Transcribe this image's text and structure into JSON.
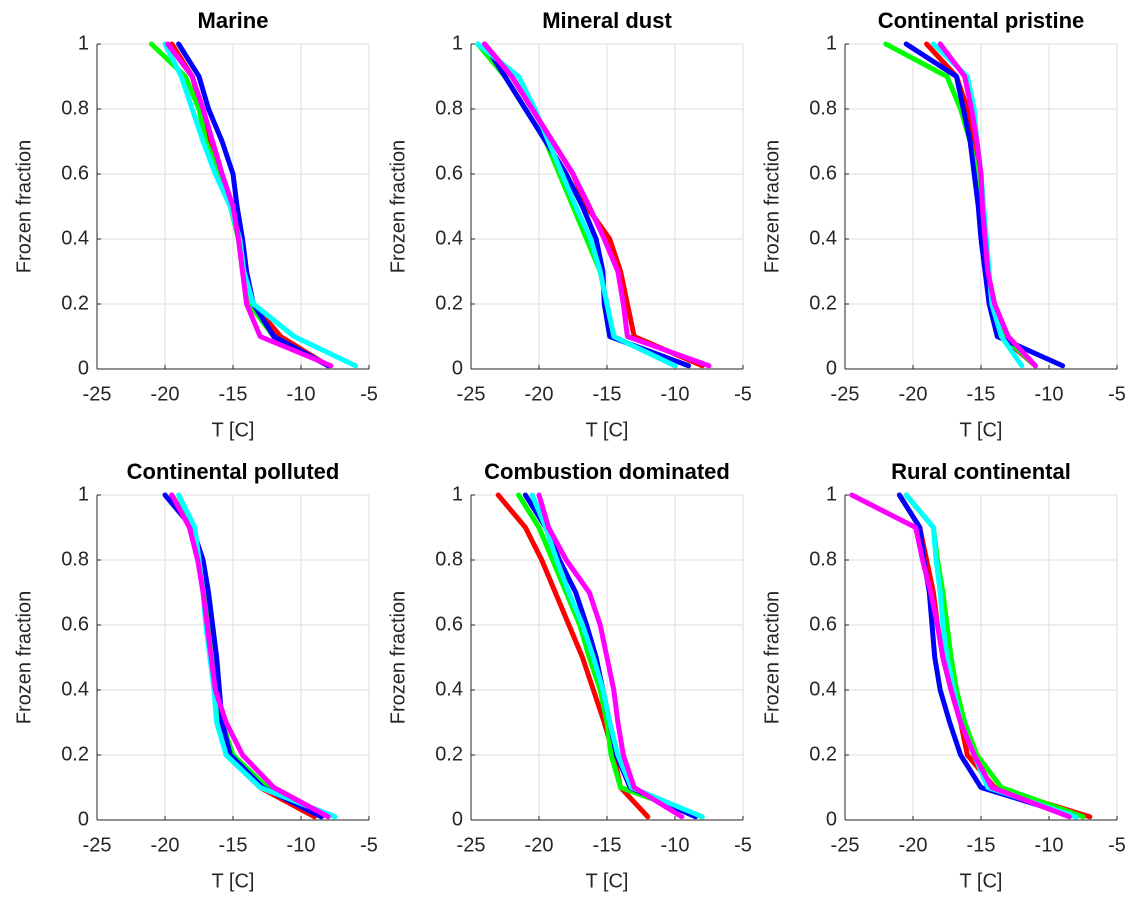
{
  "chart_data": [
    {
      "type": "line",
      "title": "Marine",
      "xlabel": "T [C]",
      "ylabel": "Frozen fraction",
      "xlim": [
        -25,
        -5
      ],
      "xticks": [
        -25,
        -20,
        -15,
        -10,
        -5
      ],
      "ylim": [
        0,
        1
      ],
      "yticks": [
        0,
        0.2,
        0.4,
        0.6,
        0.8,
        1
      ],
      "grid": true,
      "series": [
        {
          "color": "#ff0000",
          "x": [
            -19.5,
            -18,
            -17.3,
            -16.8,
            -16,
            -15,
            -14.5,
            -14.2,
            -13.5,
            -11.5,
            -8
          ],
          "values": [
            1,
            0.9,
            0.8,
            0.7,
            0.6,
            0.5,
            0.4,
            0.3,
            0.2,
            0.1,
            0.01
          ]
        },
        {
          "color": "#00ff00",
          "x": [
            -21,
            -18.5,
            -17.5,
            -17,
            -16,
            -15.2,
            -14.6,
            -14.3,
            -13.8,
            -12,
            -8
          ],
          "values": [
            1,
            0.9,
            0.8,
            0.7,
            0.6,
            0.5,
            0.4,
            0.3,
            0.2,
            0.1,
            0.01
          ]
        },
        {
          "color": "#0000ff",
          "x": [
            -19,
            -17.5,
            -16.8,
            -15.8,
            -15,
            -14.7,
            -14.3,
            -14,
            -13.5,
            -12,
            -8
          ],
          "values": [
            1,
            0.9,
            0.8,
            0.7,
            0.6,
            0.5,
            0.4,
            0.3,
            0.2,
            0.1,
            0.01
          ]
        },
        {
          "color": "#00ffff",
          "x": [
            -20,
            -18.8,
            -18,
            -17.2,
            -16.3,
            -15.2,
            -14.5,
            -14.2,
            -13.5,
            -10.5,
            -6
          ],
          "values": [
            1,
            0.9,
            0.8,
            0.7,
            0.6,
            0.5,
            0.4,
            0.3,
            0.2,
            0.1,
            0.01
          ]
        },
        {
          "color": "#ff00ff",
          "x": [
            -19.8,
            -18,
            -17.2,
            -16.5,
            -15.8,
            -15,
            -14.6,
            -14.3,
            -14,
            -13,
            -7.8
          ],
          "values": [
            1,
            0.9,
            0.8,
            0.7,
            0.6,
            0.5,
            0.4,
            0.3,
            0.2,
            0.1,
            0.01
          ]
        }
      ]
    },
    {
      "type": "line",
      "title": "Mineral dust",
      "xlabel": "T [C]",
      "ylabel": "Frozen fraction",
      "xlim": [
        -25,
        -5
      ],
      "xticks": [
        -25,
        -20,
        -15,
        -10,
        -5
      ],
      "ylim": [
        0,
        1
      ],
      "yticks": [
        0,
        0.2,
        0.4,
        0.6,
        0.8,
        1
      ],
      "grid": true,
      "series": [
        {
          "color": "#ff0000",
          "x": [
            -24,
            -22,
            -20.5,
            -19,
            -17.5,
            -16.5,
            -14.8,
            -14,
            -13.5,
            -13,
            -8
          ],
          "values": [
            1,
            0.9,
            0.8,
            0.7,
            0.6,
            0.5,
            0.4,
            0.3,
            0.2,
            0.1,
            0.01
          ]
        },
        {
          "color": "#00ff00",
          "x": [
            -24.5,
            -22.5,
            -21,
            -19.5,
            -18.5,
            -17.5,
            -16.5,
            -15.5,
            -15,
            -14.5,
            -10
          ],
          "values": [
            1,
            0.9,
            0.8,
            0.7,
            0.6,
            0.5,
            0.4,
            0.3,
            0.2,
            0.1,
            0.01
          ]
        },
        {
          "color": "#0000ff",
          "x": [
            -24,
            -22.5,
            -21,
            -19.5,
            -18,
            -16.8,
            -15.8,
            -15.3,
            -15.2,
            -14.8,
            -9
          ],
          "values": [
            1,
            0.9,
            0.8,
            0.7,
            0.6,
            0.5,
            0.4,
            0.3,
            0.2,
            0.1,
            0.01
          ]
        },
        {
          "color": "#00ffff",
          "x": [
            -24.5,
            -21.5,
            -20.3,
            -19.3,
            -18.3,
            -17.3,
            -16.2,
            -15.5,
            -15,
            -14.5,
            -10
          ],
          "values": [
            1,
            0.9,
            0.8,
            0.7,
            0.6,
            0.5,
            0.4,
            0.3,
            0.2,
            0.1,
            0.01
          ]
        },
        {
          "color": "#ff00ff",
          "x": [
            -24,
            -22,
            -20.5,
            -19,
            -17.5,
            -16.3,
            -15.2,
            -14.2,
            -13.8,
            -13.5,
            -7.5
          ],
          "values": [
            1,
            0.9,
            0.8,
            0.7,
            0.6,
            0.5,
            0.4,
            0.3,
            0.2,
            0.1,
            0.01
          ]
        }
      ]
    },
    {
      "type": "line",
      "title": "Continental pristine",
      "xlabel": "T [C]",
      "ylabel": "Frozen fraction",
      "xlim": [
        -25,
        -5
      ],
      "xticks": [
        -25,
        -20,
        -15,
        -10,
        -5
      ],
      "ylim": [
        0,
        1
      ],
      "yticks": [
        0,
        0.2,
        0.4,
        0.6,
        0.8,
        1
      ],
      "grid": true,
      "series": [
        {
          "color": "#ff0000",
          "x": [
            -19,
            -16.8,
            -16,
            -15.5,
            -15.2,
            -15,
            -14.8,
            -14.5,
            -14.2,
            -13.5,
            -11
          ],
          "values": [
            1,
            0.9,
            0.8,
            0.7,
            0.6,
            0.5,
            0.4,
            0.3,
            0.2,
            0.1,
            0.01
          ]
        },
        {
          "color": "#00ff00",
          "x": [
            -22,
            -17.5,
            -16.5,
            -15.8,
            -15.3,
            -15.1,
            -14.8,
            -14.5,
            -14,
            -13.3,
            -11
          ],
          "values": [
            1,
            0.9,
            0.8,
            0.7,
            0.6,
            0.5,
            0.4,
            0.3,
            0.2,
            0.1,
            0.01
          ]
        },
        {
          "color": "#0000ff",
          "x": [
            -20.5,
            -16.8,
            -16.3,
            -15.8,
            -15.5,
            -15.2,
            -15,
            -14.7,
            -14.4,
            -13.8,
            -9
          ],
          "values": [
            1,
            0.9,
            0.8,
            0.7,
            0.6,
            0.5,
            0.4,
            0.3,
            0.2,
            0.1,
            0.01
          ]
        },
        {
          "color": "#00ffff",
          "x": [
            -18.5,
            -16,
            -15.5,
            -15.3,
            -15,
            -14.8,
            -14.6,
            -14.4,
            -14.2,
            -13.5,
            -12
          ],
          "values": [
            1,
            0.9,
            0.8,
            0.7,
            0.6,
            0.5,
            0.4,
            0.3,
            0.2,
            0.1,
            0.01
          ]
        },
        {
          "color": "#ff00ff",
          "x": [
            -18,
            -16.2,
            -15.7,
            -15.3,
            -15,
            -14.9,
            -14.7,
            -14.5,
            -14,
            -13,
            -11
          ],
          "values": [
            1,
            0.9,
            0.8,
            0.7,
            0.6,
            0.5,
            0.4,
            0.3,
            0.2,
            0.1,
            0.01
          ]
        }
      ]
    },
    {
      "type": "line",
      "title": "Continental polluted",
      "xlabel": "T [C]",
      "ylabel": "Frozen fraction",
      "xlim": [
        -25,
        -5
      ],
      "xticks": [
        -25,
        -20,
        -15,
        -10,
        -5
      ],
      "ylim": [
        0,
        1
      ],
      "yticks": [
        0,
        0.2,
        0.4,
        0.6,
        0.8,
        1
      ],
      "grid": true,
      "series": [
        {
          "color": "#ff0000",
          "x": [
            -19.5,
            -18,
            -17.5,
            -17,
            -16.8,
            -16.5,
            -16.2,
            -16,
            -15.5,
            -13,
            -9
          ],
          "values": [
            1,
            0.9,
            0.8,
            0.7,
            0.6,
            0.5,
            0.4,
            0.3,
            0.2,
            0.1,
            0.01
          ]
        },
        {
          "color": "#00ff00",
          "x": [
            -19.5,
            -18,
            -17.5,
            -17,
            -16.7,
            -16.5,
            -16.2,
            -15.8,
            -15,
            -12.5,
            -8.5
          ],
          "values": [
            1,
            0.9,
            0.8,
            0.7,
            0.6,
            0.5,
            0.4,
            0.3,
            0.2,
            0.1,
            0.01
          ]
        },
        {
          "color": "#0000ff",
          "x": [
            -20,
            -18,
            -17.2,
            -16.8,
            -16.5,
            -16.2,
            -16,
            -15.8,
            -15.2,
            -12.8,
            -8.5
          ],
          "values": [
            1,
            0.9,
            0.8,
            0.7,
            0.6,
            0.5,
            0.4,
            0.3,
            0.2,
            0.1,
            0.01
          ]
        },
        {
          "color": "#00ffff",
          "x": [
            -19,
            -17.8,
            -17.5,
            -17.2,
            -17,
            -16.7,
            -16.4,
            -16.2,
            -15.5,
            -13,
            -7.5
          ],
          "values": [
            1,
            0.9,
            0.8,
            0.7,
            0.6,
            0.5,
            0.4,
            0.3,
            0.2,
            0.1,
            0.01
          ]
        },
        {
          "color": "#ff00ff",
          "x": [
            -19.5,
            -18.2,
            -17.6,
            -17.2,
            -16.9,
            -16.6,
            -16.3,
            -15.5,
            -14.3,
            -12,
            -8
          ],
          "values": [
            1,
            0.9,
            0.8,
            0.7,
            0.6,
            0.5,
            0.4,
            0.3,
            0.2,
            0.1,
            0.01
          ]
        }
      ]
    },
    {
      "type": "line",
      "title": "Combustion dominated",
      "xlabel": "T [C]",
      "ylabel": "Frozen fraction",
      "xlim": [
        -25,
        -5
      ],
      "xticks": [
        -25,
        -20,
        -15,
        -10,
        -5
      ],
      "ylim": [
        0,
        1
      ],
      "yticks": [
        0,
        0.2,
        0.4,
        0.6,
        0.8,
        1
      ],
      "grid": true,
      "series": [
        {
          "color": "#ff0000",
          "x": [
            -23,
            -21,
            -19.8,
            -18.8,
            -17.8,
            -16.8,
            -16,
            -15.2,
            -14.5,
            -14,
            -12
          ],
          "values": [
            1,
            0.9,
            0.8,
            0.7,
            0.6,
            0.5,
            0.4,
            0.3,
            0.2,
            0.1,
            0.01
          ]
        },
        {
          "color": "#00ff00",
          "x": [
            -21.5,
            -20,
            -19,
            -18,
            -17,
            -16.3,
            -15.5,
            -15,
            -14.7,
            -14,
            -8
          ],
          "values": [
            1,
            0.9,
            0.8,
            0.7,
            0.6,
            0.5,
            0.4,
            0.3,
            0.2,
            0.1,
            0.01
          ]
        },
        {
          "color": "#0000ff",
          "x": [
            -21,
            -19.5,
            -18.5,
            -17.3,
            -16.5,
            -15.8,
            -15.3,
            -14.8,
            -14.3,
            -13.3,
            -8.5
          ],
          "values": [
            1,
            0.9,
            0.8,
            0.7,
            0.6,
            0.5,
            0.4,
            0.3,
            0.2,
            0.1,
            0.01
          ]
        },
        {
          "color": "#00ffff",
          "x": [
            -20.5,
            -19.5,
            -18.7,
            -17.8,
            -16.8,
            -16,
            -15.3,
            -14.8,
            -14.2,
            -13.2,
            -8
          ],
          "values": [
            1,
            0.9,
            0.8,
            0.7,
            0.6,
            0.5,
            0.4,
            0.3,
            0.2,
            0.1,
            0.01
          ]
        },
        {
          "color": "#ff00ff",
          "x": [
            -20,
            -19.3,
            -18,
            -16.3,
            -15.5,
            -15,
            -14.5,
            -14.2,
            -13.8,
            -13,
            -9.5
          ],
          "values": [
            1,
            0.9,
            0.8,
            0.7,
            0.6,
            0.5,
            0.4,
            0.3,
            0.2,
            0.1,
            0.01
          ]
        }
      ]
    },
    {
      "type": "line",
      "title": "Rural continental",
      "xlabel": "T [C]",
      "ylabel": "Frozen fraction",
      "xlim": [
        -25,
        -5
      ],
      "xticks": [
        -25,
        -20,
        -15,
        -10,
        -5
      ],
      "ylim": [
        0,
        1
      ],
      "yticks": [
        0,
        0.2,
        0.4,
        0.6,
        0.8,
        1
      ],
      "grid": true,
      "series": [
        {
          "color": "#ff0000",
          "x": [
            -21,
            -19.5,
            -19,
            -18.5,
            -18.2,
            -17.8,
            -17.2,
            -16.5,
            -16,
            -14,
            -7
          ],
          "values": [
            1,
            0.9,
            0.8,
            0.7,
            0.6,
            0.5,
            0.4,
            0.3,
            0.2,
            0.1,
            0.01
          ]
        },
        {
          "color": "#00ff00",
          "x": [
            -20.5,
            -18.5,
            -18.2,
            -17.8,
            -17.5,
            -17.2,
            -16.8,
            -16.2,
            -15.3,
            -13.5,
            -7.5
          ],
          "values": [
            1,
            0.9,
            0.8,
            0.7,
            0.6,
            0.5,
            0.4,
            0.3,
            0.2,
            0.1,
            0.01
          ]
        },
        {
          "color": "#0000ff",
          "x": [
            -21,
            -19.5,
            -19.2,
            -18.8,
            -18.6,
            -18.4,
            -18,
            -17.3,
            -16.5,
            -15,
            -8
          ],
          "values": [
            1,
            0.9,
            0.8,
            0.7,
            0.6,
            0.5,
            0.4,
            0.3,
            0.2,
            0.1,
            0.01
          ]
        },
        {
          "color": "#00ffff",
          "x": [
            -20.5,
            -18.5,
            -18.3,
            -18,
            -17.8,
            -17.5,
            -17,
            -16.5,
            -15.5,
            -14.5,
            -8
          ],
          "values": [
            1,
            0.9,
            0.8,
            0.7,
            0.6,
            0.5,
            0.4,
            0.3,
            0.2,
            0.1,
            0.01
          ]
        },
        {
          "color": "#ff00ff",
          "x": [
            -24.5,
            -19.8,
            -19.3,
            -18.7,
            -18.2,
            -17.8,
            -17.2,
            -16.5,
            -15.5,
            -14.2,
            -8.5
          ],
          "values": [
            1,
            0.9,
            0.8,
            0.7,
            0.6,
            0.5,
            0.4,
            0.3,
            0.2,
            0.1,
            0.01
          ]
        }
      ]
    }
  ]
}
